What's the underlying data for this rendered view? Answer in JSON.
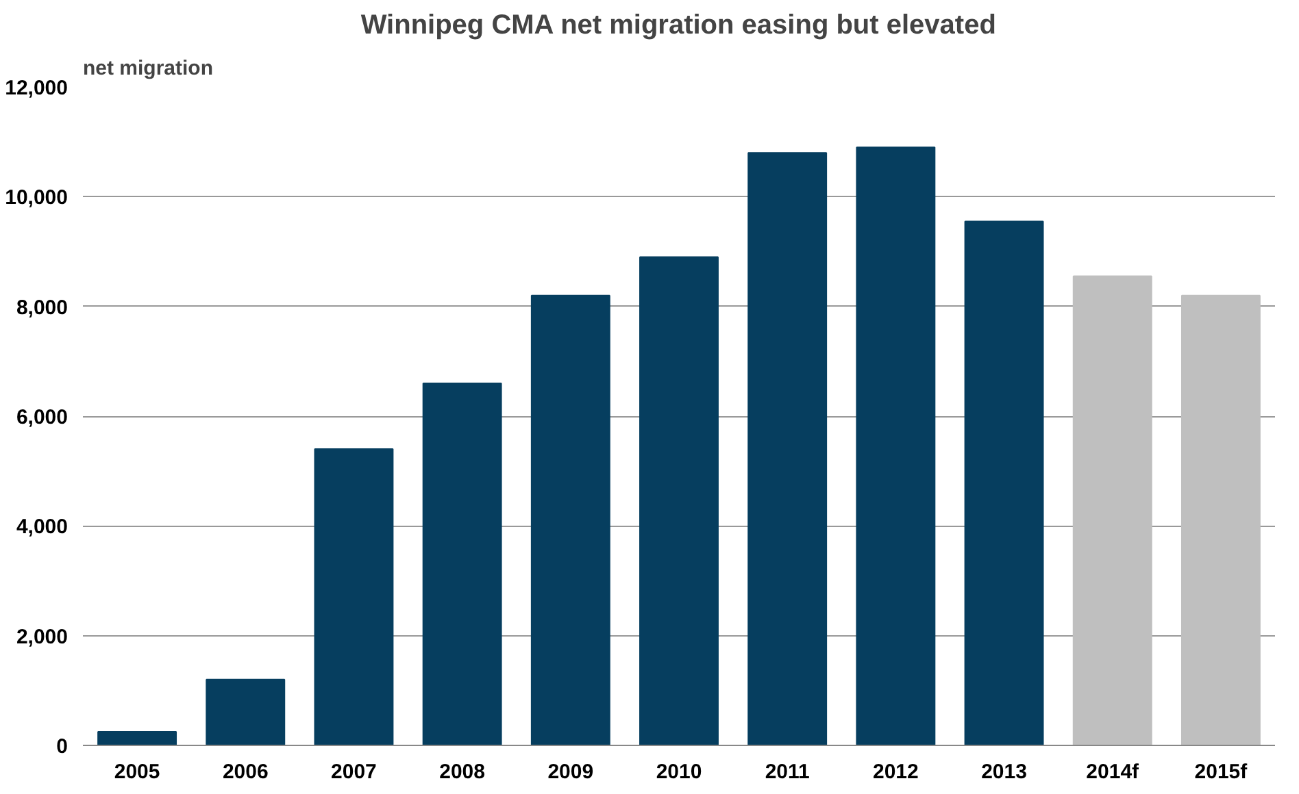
{
  "chart_data": {
    "type": "bar",
    "title": "Winnipeg CMA net migration easing but elevated",
    "ylabel": "net migration",
    "categories": [
      "2005",
      "2006",
      "2007",
      "2008",
      "2009",
      "2010",
      "2011",
      "2012",
      "2013",
      "2014f",
      "2015f"
    ],
    "values": [
      250,
      1200,
      5400,
      6600,
      8200,
      8900,
      10800,
      10900,
      9550,
      8550,
      8200
    ],
    "colors": [
      "#063e5f",
      "#063e5f",
      "#063e5f",
      "#063e5f",
      "#063e5f",
      "#063e5f",
      "#063e5f",
      "#063e5f",
      "#063e5f",
      "#bfbfbf",
      "#bfbfbf"
    ],
    "ylim": [
      0,
      12000
    ],
    "yticks": [
      {
        "value": 0,
        "label": "0"
      },
      {
        "value": 2000,
        "label": "2,000"
      },
      {
        "value": 4000,
        "label": "4,000"
      },
      {
        "value": 6000,
        "label": "6,000"
      },
      {
        "value": 8000,
        "label": "8,000"
      },
      {
        "value": 10000,
        "label": "10,000"
      },
      {
        "value": 12000,
        "label": "12,000"
      }
    ],
    "grid": "y"
  }
}
